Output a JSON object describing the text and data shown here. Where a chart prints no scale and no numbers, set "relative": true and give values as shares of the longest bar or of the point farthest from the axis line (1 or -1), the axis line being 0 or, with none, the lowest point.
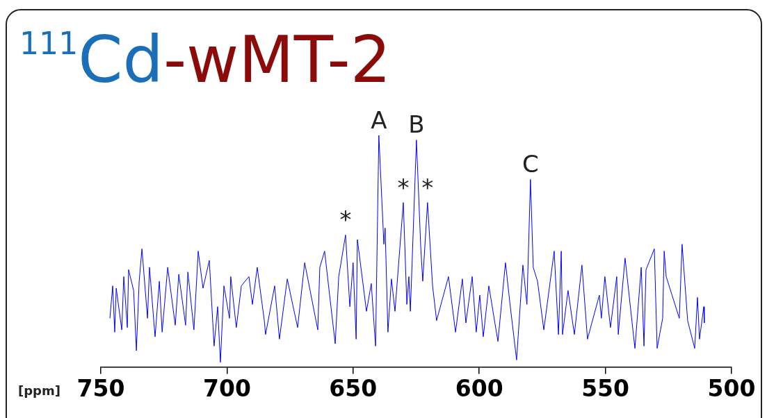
{
  "chart_data": {
    "type": "line",
    "title": "$^{111}$Cd-wMT-2",
    "xlabel": "[ppm]",
    "relative": true,
    "xlim": [
      750,
      500
    ],
    "xticks": [
      750,
      700,
      650,
      600,
      550,
      500
    ],
    "tick_labels": "x",
    "grid": false,
    "legend": false,
    "series": [
      {
        "color": "#0000ff",
        "x": [
          746.4,
          745.3,
          744.5,
          743.9,
          741.7,
          740.9,
          739.5,
          739.0,
          737.0,
          735.9,
          734.8,
          733.7,
          731.5,
          730.7,
          728.5,
          726.8,
          725.7,
          723.5,
          720.5,
          719.1,
          716.4,
          715.5,
          713.1,
          711.4,
          709.5,
          707.0,
          705.1,
          703.7,
          702.6,
          701.2,
          699.0,
          698.5,
          696.3,
          694.3,
          691.3,
          689.9,
          688.0,
          685.2,
          684.7,
          681.1,
          679.2,
          676.1,
          672.0,
          669.2,
          664.0,
          663.2,
          661.3,
          657.1,
          655.7,
          653.0,
          651.3,
          650.0,
          648.8,
          648.3,
          644.7,
          642.8,
          641.1,
          639.8,
          637.8,
          637.3,
          636.2,
          634.8,
          633.4,
          630.1,
          628.7,
          627.9,
          627.3,
          624.9,
          623.2,
          622.4,
          620.5,
          618.5,
          616.9,
          612.2,
          609.4,
          606.7,
          605.3,
          602.8,
          601.2,
          599.8,
          598.4,
          596.2,
          592.6,
          589.6,
          587.9,
          585.2,
          582.7,
          581.1,
          579.7,
          578.6,
          576.9,
          574.4,
          570.3,
          568.6,
          567.5,
          567.0,
          564.8,
          562.3,
          559.3,
          557.1,
          552.4,
          551.6,
          550.2,
          548.0,
          545.5,
          544.9,
          542.2,
          538.3,
          535.8,
          534.7,
          533.9,
          530.6,
          529.5,
          527.3,
          526.7,
          525.9,
          520.7,
          519.6,
          517.4,
          514.6,
          513.5,
          512.7,
          511.0,
          510.8
        ],
        "values": [
          0.21,
          0.35,
          0.15,
          0.34,
          0.16,
          0.39,
          0.17,
          0.42,
          0.33,
          0.07,
          0.37,
          0.51,
          0.21,
          0.43,
          0.13,
          0.37,
          0.15,
          0.43,
          0.18,
          0.4,
          0.18,
          0.41,
          0.16,
          0.5,
          0.34,
          0.46,
          0.09,
          0.26,
          0.02,
          0.35,
          0.21,
          0.39,
          0.17,
          0.35,
          0.39,
          0.27,
          0.43,
          0.2,
          0.14,
          0.35,
          0.12,
          0.38,
          0.17,
          0.45,
          0.16,
          0.43,
          0.5,
          0.1,
          0.39,
          0.57,
          0.26,
          0.45,
          0.12,
          0.55,
          0.24,
          0.36,
          0.09,
          1,
          0.53,
          0.6,
          0.15,
          0.38,
          0.24,
          0.71,
          0.27,
          0.39,
          0.24,
          0.98,
          0.52,
          0.37,
          0.71,
          0.35,
          0.2,
          0.39,
          0.15,
          0.38,
          0.19,
          0.39,
          0.15,
          0.31,
          0.13,
          0.35,
          0.11,
          0.45,
          0.28,
          0.03,
          0.44,
          0.27,
          0.81,
          0.43,
          0.37,
          0.16,
          0.5,
          0.14,
          0.5,
          0.14,
          0.33,
          0.14,
          0.44,
          0.12,
          0.31,
          0.21,
          0.39,
          0.17,
          0.39,
          0.14,
          0.47,
          0.08,
          0.43,
          0.09,
          0.42,
          0.51,
          0.08,
          0.21,
          0.5,
          0.39,
          0.21,
          0.53,
          0.2,
          0.08,
          0.3,
          0.12,
          0.26,
          0.19
        ]
      }
    ],
    "annotations": [
      {
        "text": "A",
        "x": 639.8,
        "y": 1
      },
      {
        "text": "B",
        "x": 624.9,
        "y": 0.98
      },
      {
        "text": "C",
        "x": 579.7,
        "y": 0.81
      },
      {
        "text": "*",
        "x": 653.0,
        "y": 0.57
      },
      {
        "text": "*",
        "x": 630.1,
        "y": 0.71
      },
      {
        "text": "*",
        "x": 620.5,
        "y": 0.71
      }
    ]
  }
}
